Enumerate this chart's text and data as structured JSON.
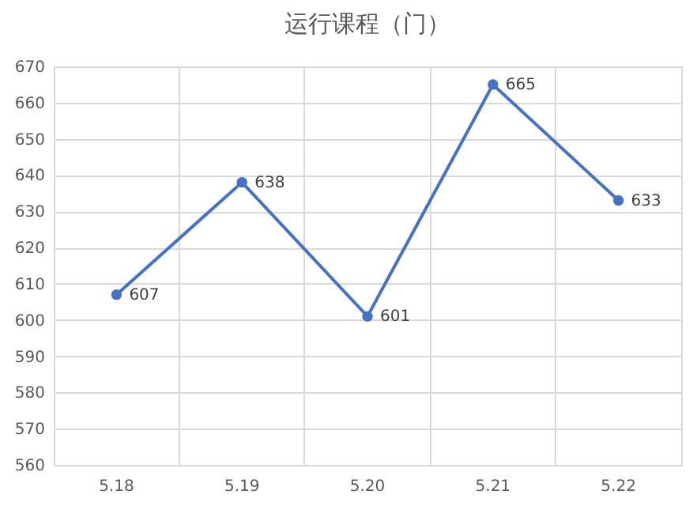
{
  "chart_data": {
    "type": "line",
    "title": "运行课程（门）",
    "categories": [
      "5.18",
      "5.19",
      "5.20",
      "5.21",
      "5.22"
    ],
    "series": [
      {
        "color": "#4472c4",
        "values": [
          607,
          638,
          601,
          665,
          633
        ]
      }
    ],
    "ylim": [
      560,
      670
    ],
    "yticks": [
      560,
      570,
      580,
      590,
      600,
      610,
      620,
      630,
      640,
      650,
      660,
      670
    ],
    "grid": true,
    "marker": "circle",
    "data_labels": true
  }
}
